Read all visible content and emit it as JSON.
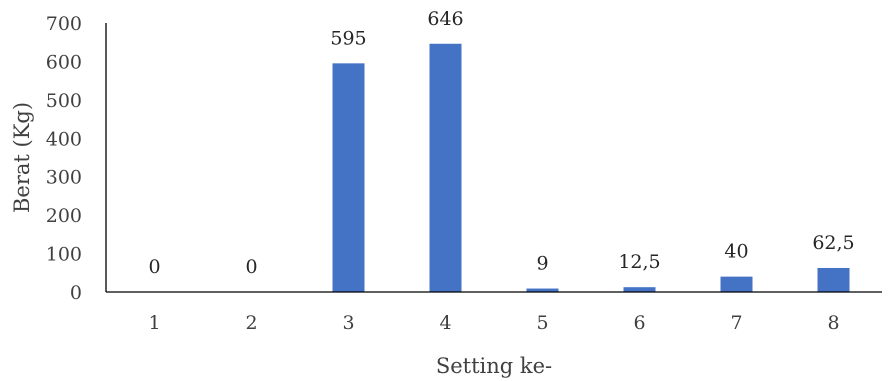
{
  "chart_data": {
    "type": "bar",
    "title": "",
    "xlabel": "Setting ke-",
    "ylabel": "Berat (Kg)",
    "categories": [
      "1",
      "2",
      "3",
      "4",
      "5",
      "6",
      "7",
      "8"
    ],
    "values": [
      0,
      0,
      595,
      646,
      9,
      12.5,
      40,
      62.5
    ],
    "data_labels": [
      "0",
      "0",
      "595",
      "646",
      "9",
      "12,5",
      "40",
      "62,5"
    ],
    "yticks": [
      "0",
      "100",
      "200",
      "300",
      "400",
      "500",
      "600",
      "700"
    ],
    "ylim": [
      0,
      700
    ],
    "grid": false,
    "legend": "none",
    "bar_color": "#4472C4"
  }
}
